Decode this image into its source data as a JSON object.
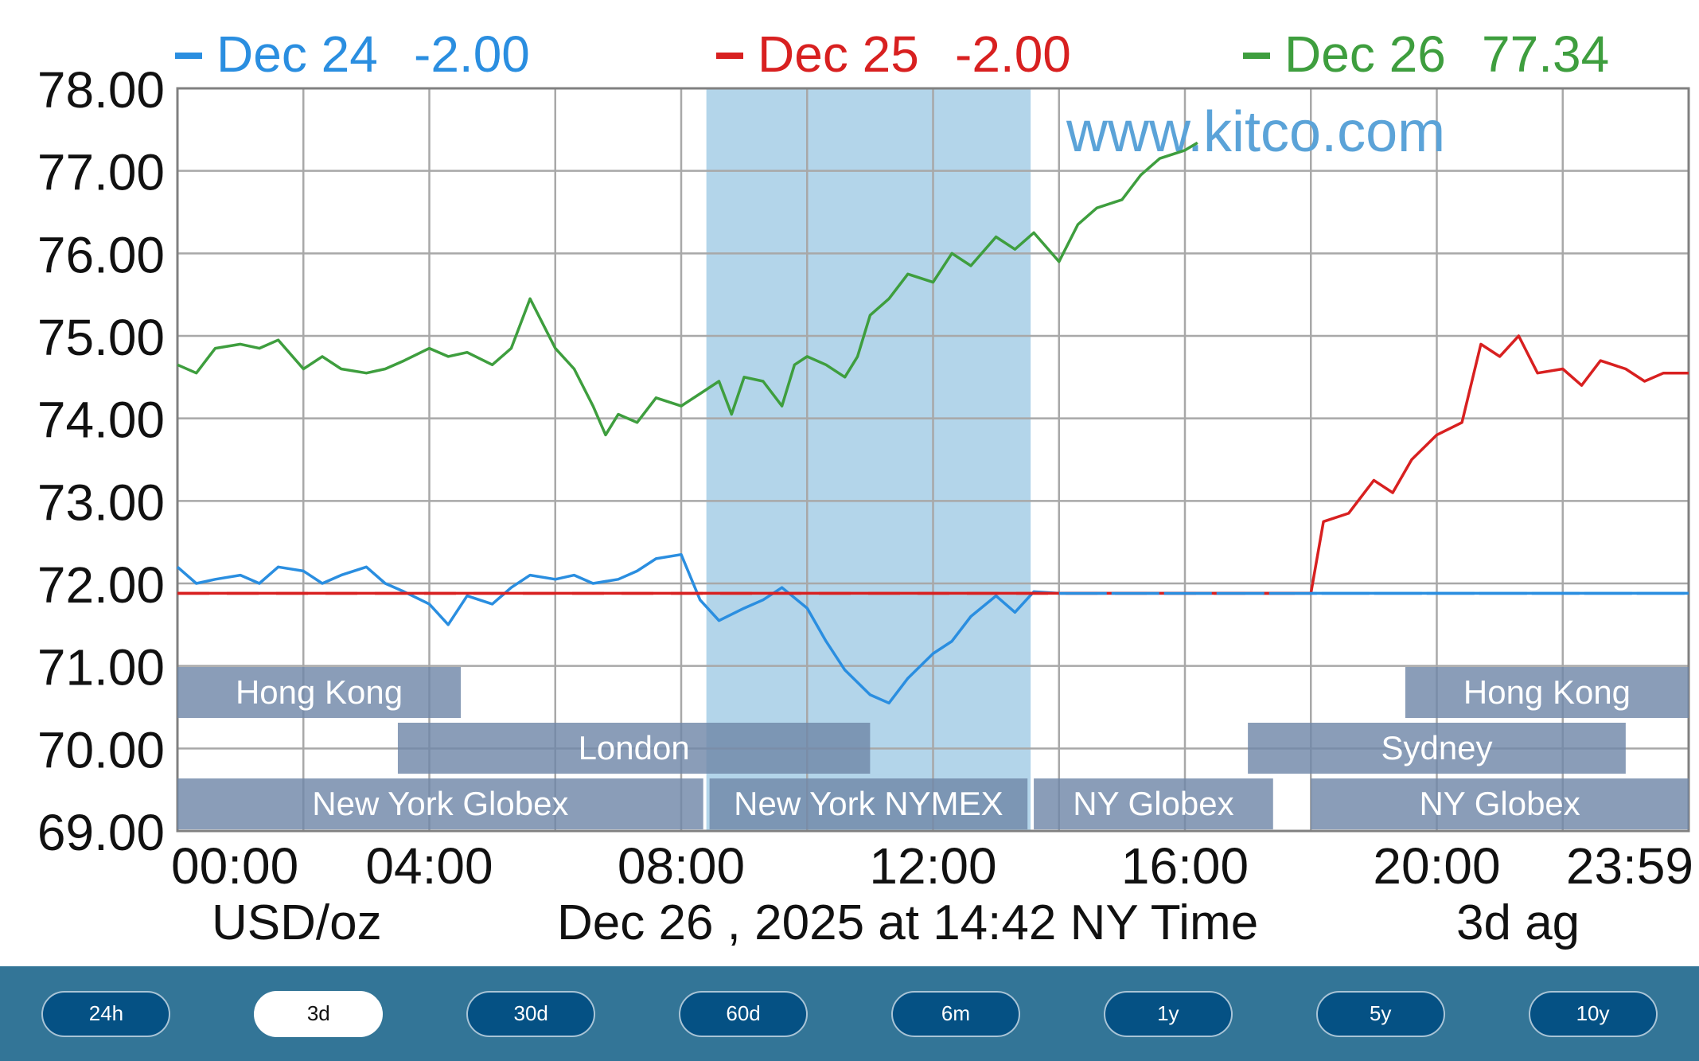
{
  "chart_data": {
    "type": "line",
    "watermark": "www.kitco.com",
    "ylim": [
      69,
      78
    ],
    "xlim": [
      0,
      24
    ],
    "y_ticks": [
      "78.00",
      "77.00",
      "76.00",
      "75.00",
      "74.00",
      "73.00",
      "72.00",
      "71.00",
      "70.00",
      "69.00"
    ],
    "x_ticks": [
      "00:00",
      "04:00",
      "08:00",
      "12:00",
      "16:00",
      "20:00",
      "23:59"
    ],
    "x_tick_values": [
      0,
      4,
      8,
      12,
      16,
      20,
      24
    ],
    "unit_label": "USD/oz",
    "date_label": "Dec 26 , 2025 at 14:42 NY Time",
    "range_label": "3d ag",
    "grid": true,
    "legend_placement": "top",
    "nymex_session": [
      8.4,
      13.55
    ],
    "series": [
      {
        "name": "Dec 24",
        "value": "-2.00",
        "color": "#2a8ee0",
        "points": [
          [
            0,
            72.2
          ],
          [
            0.3,
            72.0
          ],
          [
            0.6,
            72.05
          ],
          [
            1,
            72.1
          ],
          [
            1.3,
            72.0
          ],
          [
            1.6,
            72.2
          ],
          [
            2,
            72.15
          ],
          [
            2.3,
            72.0
          ],
          [
            2.6,
            72.1
          ],
          [
            3,
            72.2
          ],
          [
            3.3,
            72.0
          ],
          [
            3.6,
            71.9
          ],
          [
            4,
            71.75
          ],
          [
            4.3,
            71.5
          ],
          [
            4.6,
            71.85
          ],
          [
            5,
            71.75
          ],
          [
            5.3,
            71.95
          ],
          [
            5.6,
            72.1
          ],
          [
            6,
            72.05
          ],
          [
            6.3,
            72.1
          ],
          [
            6.6,
            72.0
          ],
          [
            7,
            72.05
          ],
          [
            7.3,
            72.15
          ],
          [
            7.6,
            72.3
          ],
          [
            8,
            72.35
          ],
          [
            8.3,
            71.8
          ],
          [
            8.6,
            71.55
          ],
          [
            9,
            71.7
          ],
          [
            9.3,
            71.8
          ],
          [
            9.6,
            71.95
          ],
          [
            10,
            71.7
          ],
          [
            10.3,
            71.3
          ],
          [
            10.6,
            70.95
          ],
          [
            11,
            70.65
          ],
          [
            11.3,
            70.55
          ],
          [
            11.6,
            70.85
          ],
          [
            12,
            71.15
          ],
          [
            12.3,
            71.3
          ],
          [
            12.6,
            71.6
          ],
          [
            13,
            71.85
          ],
          [
            13.3,
            71.65
          ],
          [
            13.6,
            71.9
          ],
          [
            14,
            71.88
          ],
          [
            24,
            71.88
          ]
        ]
      },
      {
        "name": "Dec 25",
        "value": "-2.00",
        "color": "#d82020",
        "points": [
          [
            0,
            71.88
          ],
          [
            18,
            71.88
          ],
          [
            18.2,
            72.75
          ],
          [
            18.6,
            72.85
          ],
          [
            19,
            73.25
          ],
          [
            19.3,
            73.1
          ],
          [
            19.6,
            73.5
          ],
          [
            20,
            73.8
          ],
          [
            20.4,
            73.95
          ],
          [
            20.7,
            74.9
          ],
          [
            21,
            74.75
          ],
          [
            21.3,
            75.0
          ],
          [
            21.6,
            74.55
          ],
          [
            22,
            74.6
          ],
          [
            22.3,
            74.4
          ],
          [
            22.6,
            74.7
          ],
          [
            23,
            74.6
          ],
          [
            23.3,
            74.45
          ],
          [
            23.6,
            74.55
          ],
          [
            24,
            74.55
          ]
        ]
      },
      {
        "name": "Dec 26",
        "value": "77.34",
        "color": "#3e9e3e",
        "points": [
          [
            0,
            74.65
          ],
          [
            0.3,
            74.55
          ],
          [
            0.6,
            74.85
          ],
          [
            1,
            74.9
          ],
          [
            1.3,
            74.85
          ],
          [
            1.6,
            74.95
          ],
          [
            2,
            74.6
          ],
          [
            2.3,
            74.75
          ],
          [
            2.6,
            74.6
          ],
          [
            3,
            74.55
          ],
          [
            3.3,
            74.6
          ],
          [
            3.6,
            74.7
          ],
          [
            4,
            74.85
          ],
          [
            4.3,
            74.75
          ],
          [
            4.6,
            74.8
          ],
          [
            5,
            74.65
          ],
          [
            5.3,
            74.85
          ],
          [
            5.6,
            75.45
          ],
          [
            6,
            74.85
          ],
          [
            6.3,
            74.6
          ],
          [
            6.6,
            74.15
          ],
          [
            6.8,
            73.8
          ],
          [
            7,
            74.05
          ],
          [
            7.3,
            73.95
          ],
          [
            7.6,
            74.25
          ],
          [
            8,
            74.15
          ],
          [
            8.3,
            74.3
          ],
          [
            8.6,
            74.45
          ],
          [
            8.8,
            74.05
          ],
          [
            9,
            74.5
          ],
          [
            9.3,
            74.45
          ],
          [
            9.6,
            74.15
          ],
          [
            9.8,
            74.65
          ],
          [
            10,
            74.75
          ],
          [
            10.3,
            74.65
          ],
          [
            10.6,
            74.5
          ],
          [
            10.8,
            74.75
          ],
          [
            11,
            75.25
          ],
          [
            11.3,
            75.45
          ],
          [
            11.6,
            75.75
          ],
          [
            12,
            75.65
          ],
          [
            12.3,
            76.0
          ],
          [
            12.6,
            75.85
          ],
          [
            13,
            76.2
          ],
          [
            13.3,
            76.05
          ],
          [
            13.6,
            76.25
          ],
          [
            14,
            75.9
          ],
          [
            14.3,
            76.35
          ],
          [
            14.6,
            76.55
          ],
          [
            15,
            76.65
          ],
          [
            15.3,
            76.95
          ],
          [
            15.6,
            77.15
          ],
          [
            16,
            77.25
          ],
          [
            16.2,
            77.34
          ]
        ]
      }
    ],
    "session_bars": [
      {
        "label": "Hong Kong",
        "start": 0,
        "end": 4.5,
        "row": 0
      },
      {
        "label": "Hong Kong",
        "start": 19.5,
        "end": 24,
        "row": 0
      },
      {
        "label": "London",
        "start": 3.5,
        "end": 11.0,
        "row": 1
      },
      {
        "label": "Sydney",
        "start": 17.0,
        "end": 23.0,
        "row": 1
      },
      {
        "label": "New York Globex",
        "start": 0,
        "end": 8.35,
        "row": 2
      },
      {
        "label": "New York NYMEX",
        "start": 8.45,
        "end": 13.5,
        "row": 2
      },
      {
        "label": "NY Globex",
        "start": 13.6,
        "end": 17.4,
        "row": 2
      },
      {
        "label": "NY Globex",
        "start": 18.0,
        "end": 24,
        "row": 2
      }
    ]
  },
  "toolbar": {
    "buttons": [
      {
        "label": "24h",
        "active": false
      },
      {
        "label": "3d",
        "active": true
      },
      {
        "label": "30d",
        "active": false
      },
      {
        "label": "60d",
        "active": false
      },
      {
        "label": "6m",
        "active": false
      },
      {
        "label": "1y",
        "active": false
      },
      {
        "label": "5y",
        "active": false
      },
      {
        "label": "10y",
        "active": false
      }
    ]
  }
}
